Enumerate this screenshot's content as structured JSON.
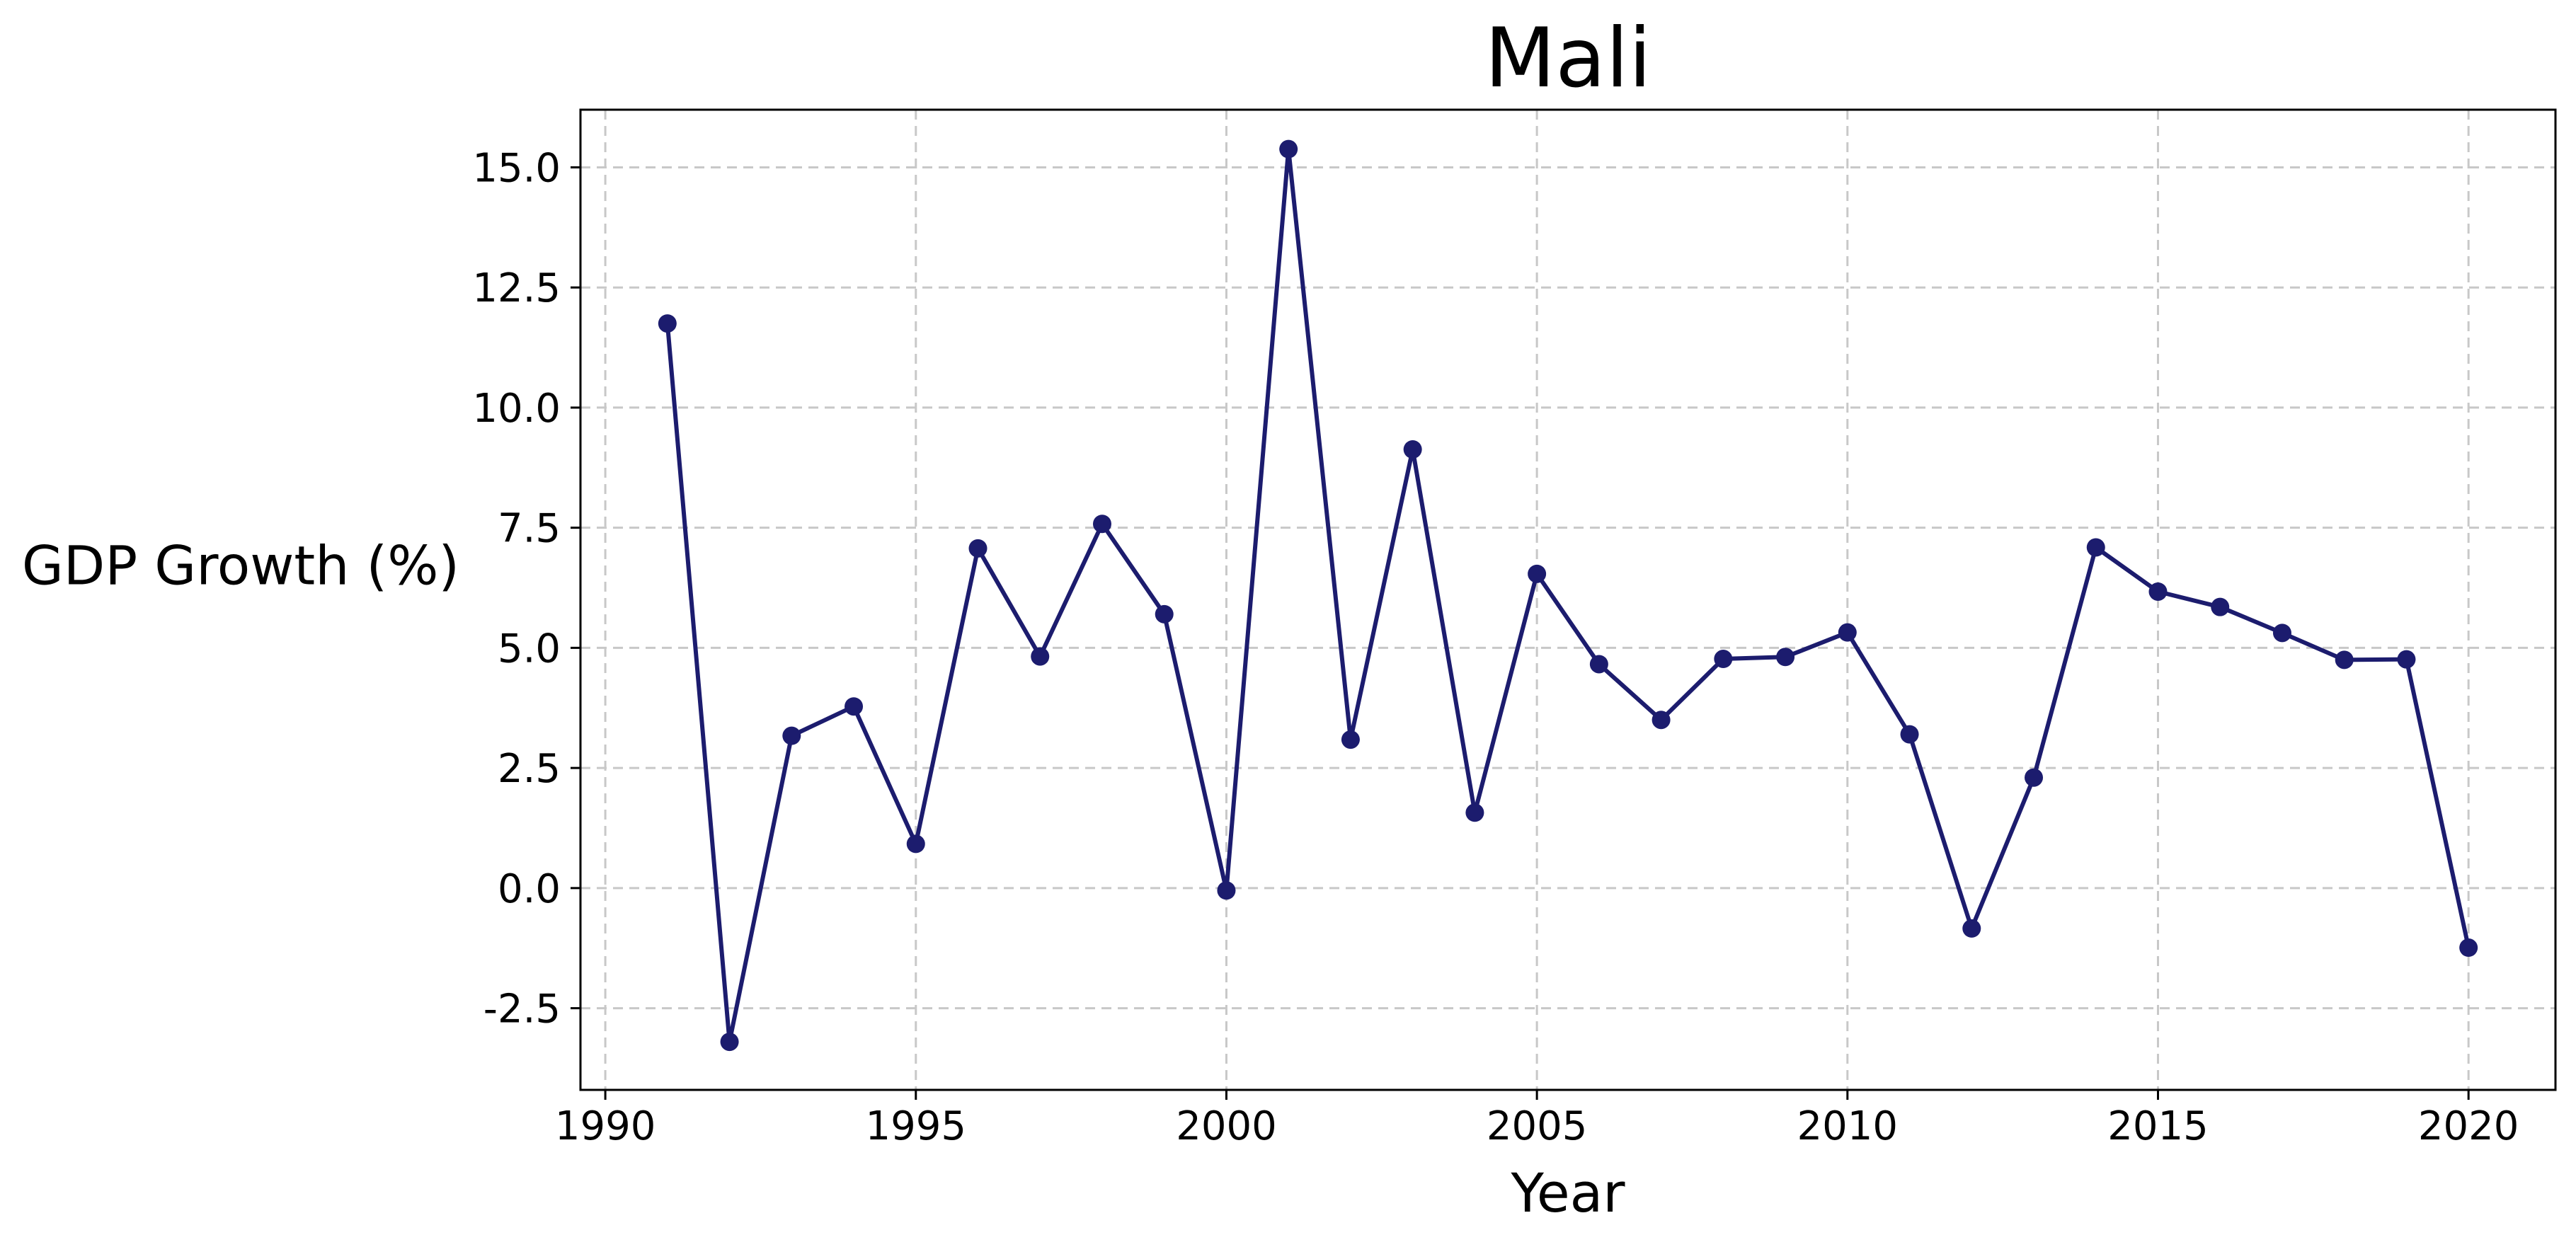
{
  "chart_data": {
    "type": "line",
    "title": "Mali",
    "xlabel": "Year",
    "ylabel": "GDP Growth (%)",
    "xlim": [
      1989.6,
      2021.4
    ],
    "ylim": [
      -4.2,
      16.2
    ],
    "xticks": [
      1990,
      1995,
      2000,
      2005,
      2010,
      2015,
      2020
    ],
    "xtick_labels": [
      "1990",
      "1995",
      "2000",
      "2005",
      "2010",
      "2015",
      "2020"
    ],
    "yticks": [
      -2.5,
      0.0,
      2.5,
      5.0,
      7.5,
      10.0,
      12.5,
      15.0
    ],
    "ytick_labels": [
      "-2.5",
      "0.0",
      "2.5",
      "5.0",
      "7.5",
      "10.0",
      "12.5",
      "15.0"
    ],
    "grid": true,
    "line_color": "#1c1c6e",
    "series": [
      {
        "x": [
          1991,
          1992,
          1993,
          1994,
          1995,
          1996,
          1997,
          1998,
          1999,
          2000,
          2001,
          2002,
          2003,
          2004,
          2005,
          2006,
          2007,
          2008,
          2009,
          2010,
          2011,
          2012,
          2013,
          2014,
          2015,
          2016,
          2017,
          2018,
          2019,
          2020
        ],
        "values": [
          11.75,
          -3.2,
          3.17,
          3.78,
          0.92,
          7.07,
          4.82,
          7.58,
          5.7,
          -0.05,
          15.38,
          3.09,
          9.13,
          1.57,
          6.54,
          4.66,
          3.5,
          4.77,
          4.81,
          5.32,
          3.2,
          -0.84,
          2.3,
          7.09,
          6.17,
          5.85,
          5.31,
          4.75,
          4.76,
          -1.24
        ]
      }
    ]
  }
}
